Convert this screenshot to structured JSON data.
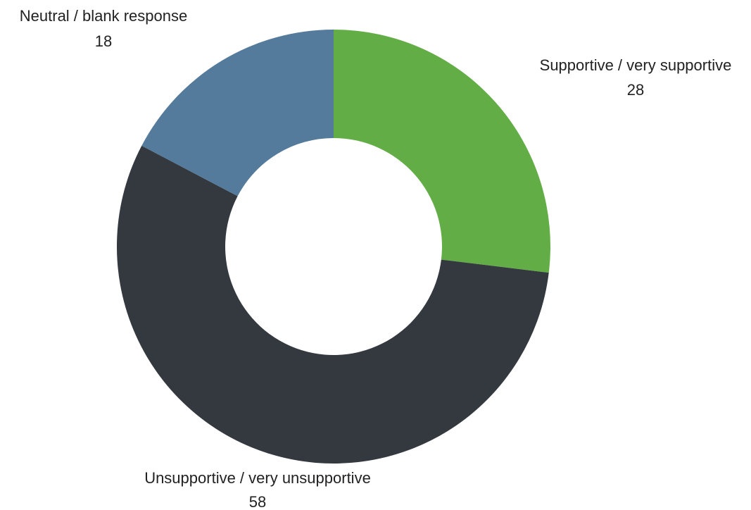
{
  "chart_data": {
    "type": "pie",
    "variant": "donut",
    "title": "",
    "slices": [
      {
        "label": "Supportive / very supportive",
        "value": 28,
        "color": "#63ad47"
      },
      {
        "label": "Unsupportive / very unsupportive",
        "value": 58,
        "color": "#343940"
      },
      {
        "label": "Neutral / blank response",
        "value": 18,
        "color": "#547b9c"
      }
    ]
  }
}
